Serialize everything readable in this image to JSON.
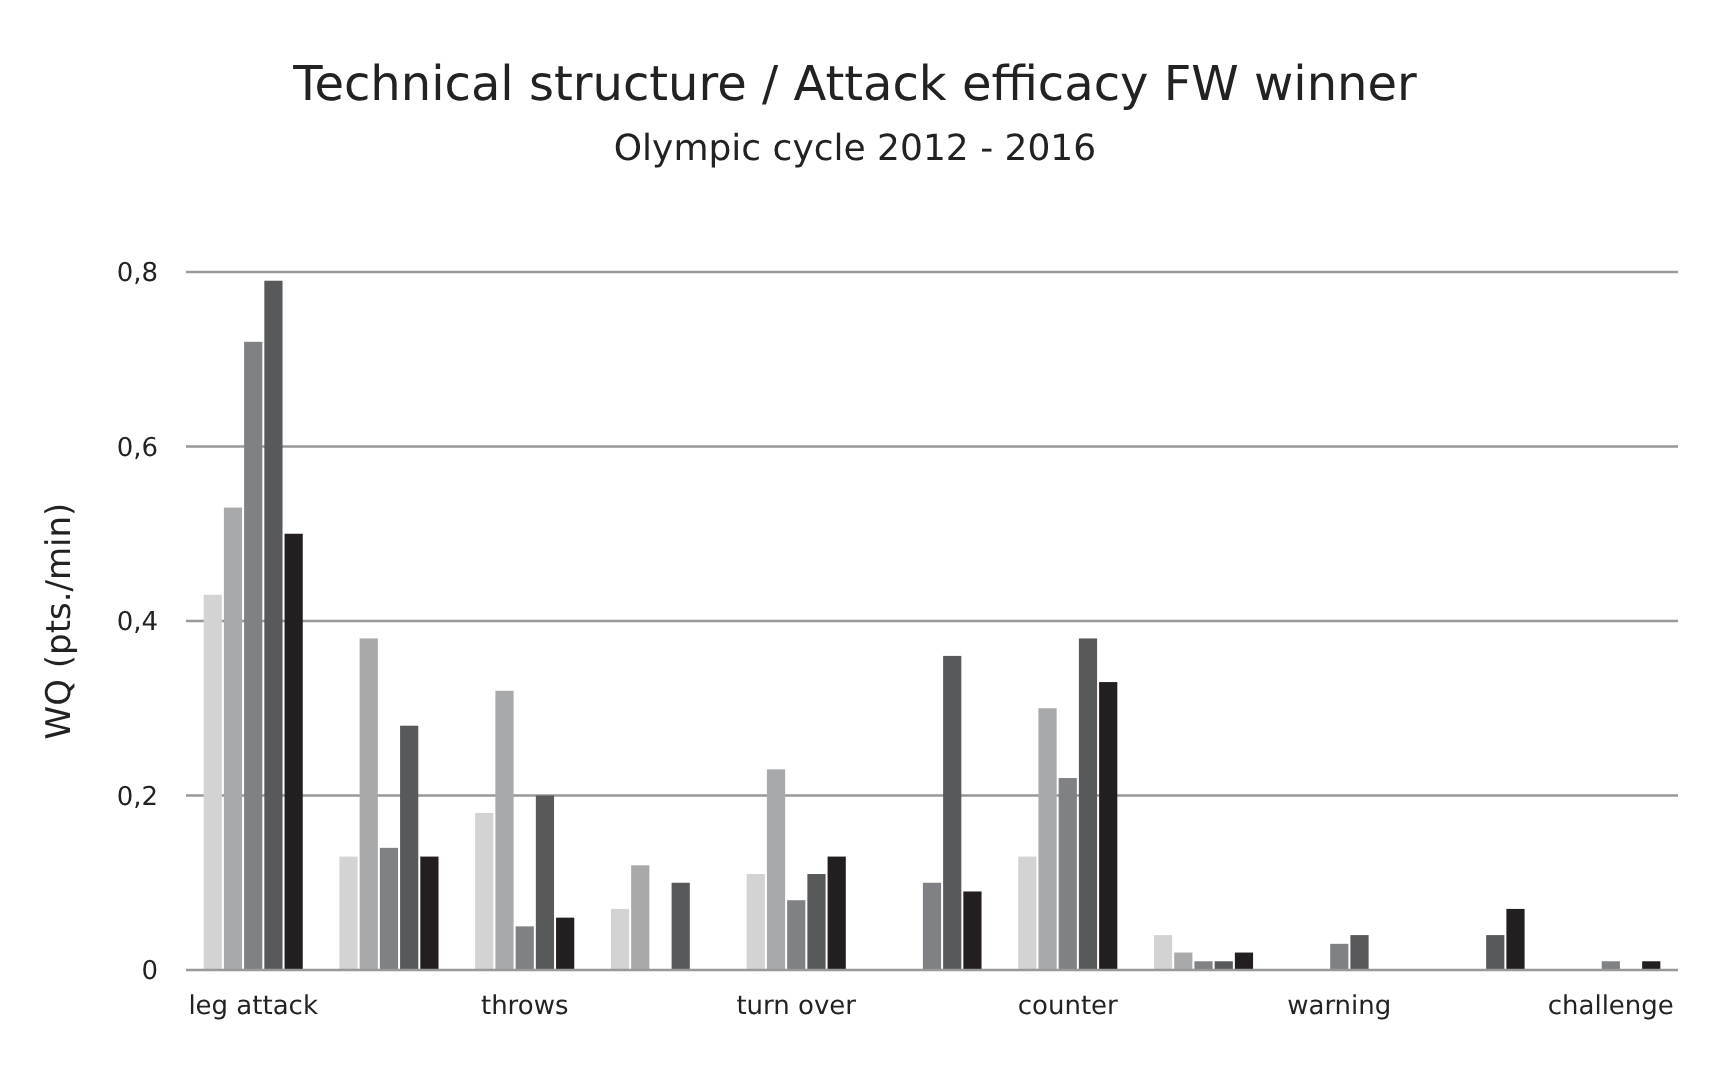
{
  "chart_data": {
    "type": "bar",
    "title": "Technical structure / Attack efficacy FW winner",
    "subtitle": "Olympic cycle 2012 - 2016",
    "ylabel": "WQ (pts./min)",
    "categories": [
      "leg attack",
      null,
      "throws",
      null,
      "turn over",
      null,
      "counter",
      null,
      "warning",
      null,
      "challenge"
    ],
    "series": [
      {
        "color": "#d3d3d3",
        "values": [
          0.43,
          0.13,
          0.18,
          0.07,
          0.11,
          0,
          0.13,
          0.04,
          0,
          0,
          0
        ]
      },
      {
        "color": "#a8a9ab",
        "values": [
          0.53,
          0.38,
          0.32,
          0.12,
          0.23,
          0,
          0.3,
          0.02,
          0,
          0,
          0
        ]
      },
      {
        "color": "#808184",
        "values": [
          0.72,
          0.14,
          0.05,
          0,
          0.08,
          0.1,
          0.22,
          0.01,
          0.03,
          0,
          0.01
        ]
      },
      {
        "color": "#58595b",
        "values": [
          0.79,
          0.28,
          0.2,
          0.1,
          0.11,
          0.36,
          0.38,
          0.01,
          0.04,
          0.04,
          0
        ]
      },
      {
        "color": "#231f20",
        "values": [
          0.5,
          0.13,
          0.06,
          0,
          0.13,
          0.09,
          0.33,
          0.02,
          0,
          0.07,
          0.01
        ]
      }
    ],
    "ylim": [
      0,
      0.8
    ],
    "yticks": [
      0,
      {
        "value": 0.2,
        "label": "0,2"
      },
      {
        "value": 0.4,
        "label": "0,4"
      },
      {
        "value": 0.6,
        "label": "0,6"
      },
      {
        "value": 0.8,
        "label": "0,8"
      }
    ],
    "grid": "y"
  }
}
